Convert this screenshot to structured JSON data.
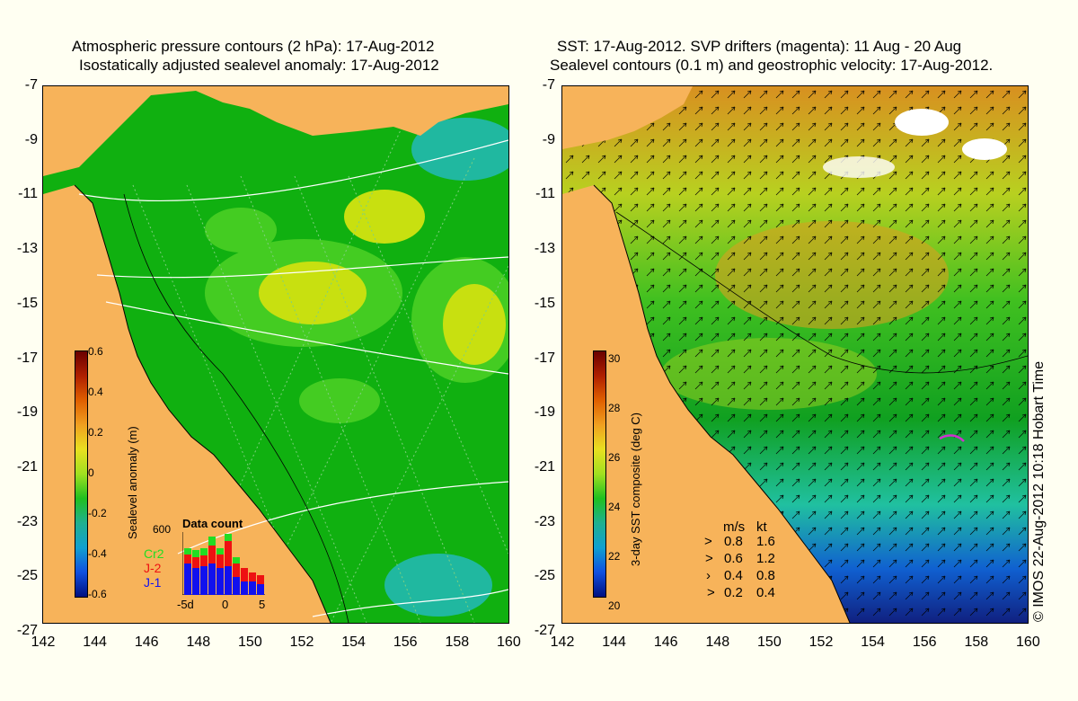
{
  "left_panel": {
    "title_line1": "Atmospheric pressure contours (2 hPa): 17-Aug-2012",
    "title_line2": "Isostatically adjusted sealevel anomaly: 17-Aug-2012",
    "colorbar": {
      "label": "Sealevel anomaly (m)",
      "ticks": [
        "0.6",
        "0.4",
        "0.2",
        "0",
        "-0.2",
        "-0.4",
        "-0.6"
      ]
    },
    "data_count": {
      "title": "Data count",
      "max_label": "600",
      "x_ticks": [
        "-5d",
        "0",
        "5"
      ],
      "missions": [
        {
          "name": "Cr2",
          "color": "#22dd22"
        },
        {
          "name": "J-2",
          "color": "#ee1111"
        },
        {
          "name": "J-1",
          "color": "#1111ee"
        }
      ]
    }
  },
  "right_panel": {
    "title_line1": "SST: 17-Aug-2012. SVP drifters (magenta): 11 Aug - 20 Aug",
    "title_line2": "Sealevel contours (0.1 m) and geostrophic velocity: 17-Aug-2012.",
    "colorbar": {
      "label": "3-day SST composite (deg C)",
      "ticks": [
        "30",
        "28",
        "26",
        "24",
        "22",
        "20"
      ]
    },
    "velocity_legend": {
      "header_ms": "m/s",
      "header_kt": "kt",
      "rows": [
        {
          "ms": "0.8",
          "kt": "1.6"
        },
        {
          "ms": "0.6",
          "kt": "1.2"
        },
        {
          "ms": "0.4",
          "kt": "0.8"
        },
        {
          "ms": "0.2",
          "kt": "0.4"
        }
      ]
    }
  },
  "axes": {
    "lat_ticks": [
      "-7",
      "-9",
      "-11",
      "-13",
      "-15",
      "-17",
      "-19",
      "-21",
      "-23",
      "-25",
      "-27"
    ],
    "lon_ticks": [
      "142",
      "144",
      "146",
      "148",
      "150",
      "152",
      "154",
      "156",
      "158",
      "160"
    ]
  },
  "credit": "© IMOS 22-Aug-2012 10:18 Hobart Time",
  "colors": {
    "background": "#fffff2",
    "land": "#f7b35a",
    "sea_green": "#10b010",
    "light_green": "#44cc22",
    "yellow_green": "#c8e010",
    "cyan": "#20b8a0",
    "drifter": "#cc33cc"
  }
}
